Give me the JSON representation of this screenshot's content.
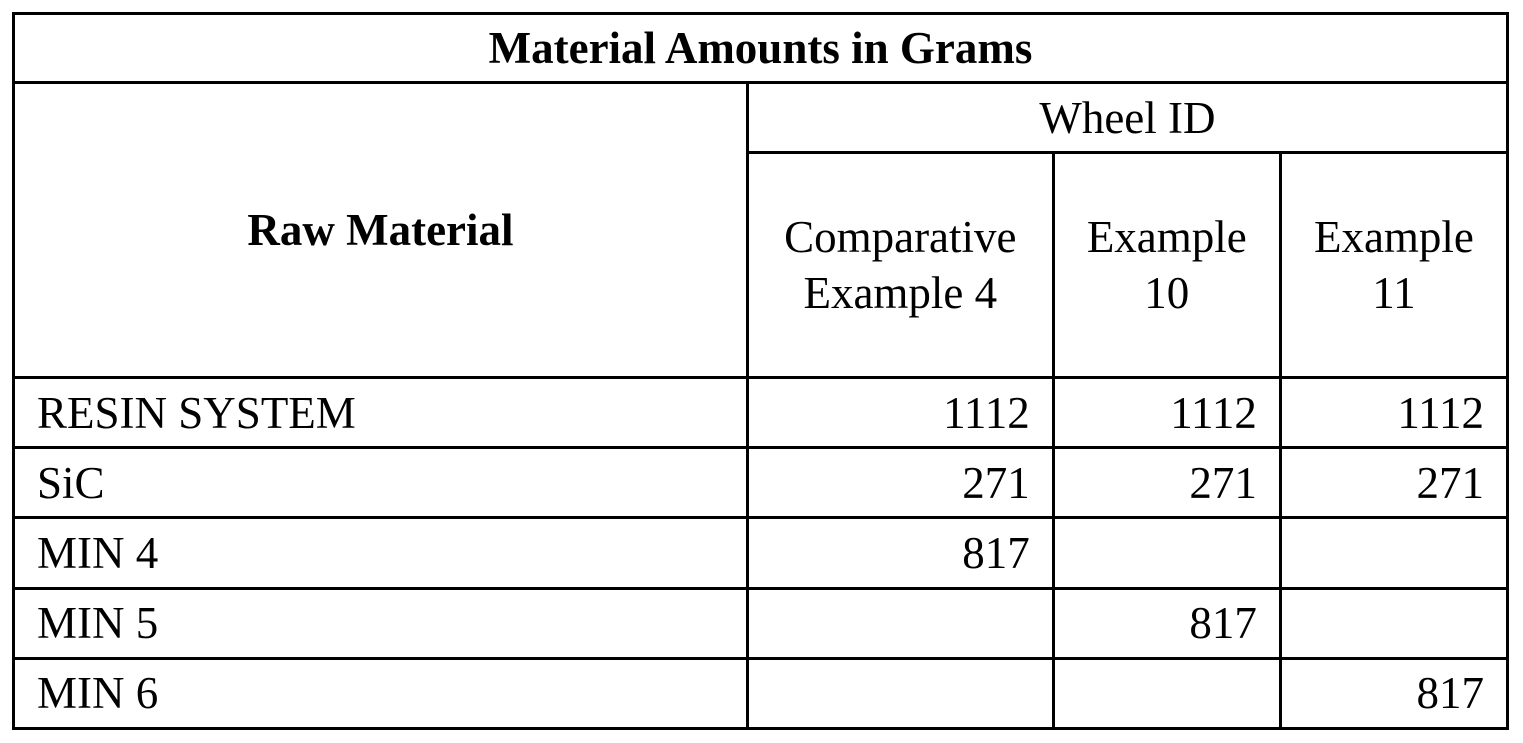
{
  "title": "Material Amounts in Grams",
  "raw_material_header": "Raw Material",
  "wheel_id_header": "Wheel ID",
  "columns": [
    [
      "Comparative",
      "Example 4"
    ],
    [
      "Example",
      "10"
    ],
    [
      "Example",
      "11"
    ]
  ],
  "rows": [
    {
      "material": "RESIN SYSTEM",
      "values": [
        "1112",
        "1112",
        "1112"
      ]
    },
    {
      "material": "SiC",
      "values": [
        "271",
        "271",
        "271"
      ]
    },
    {
      "material": "MIN 4",
      "values": [
        "817",
        "",
        ""
      ]
    },
    {
      "material": "MIN 5",
      "values": [
        "",
        "817",
        ""
      ]
    },
    {
      "material": "MIN 6",
      "values": [
        "",
        "",
        "817"
      ]
    }
  ]
}
